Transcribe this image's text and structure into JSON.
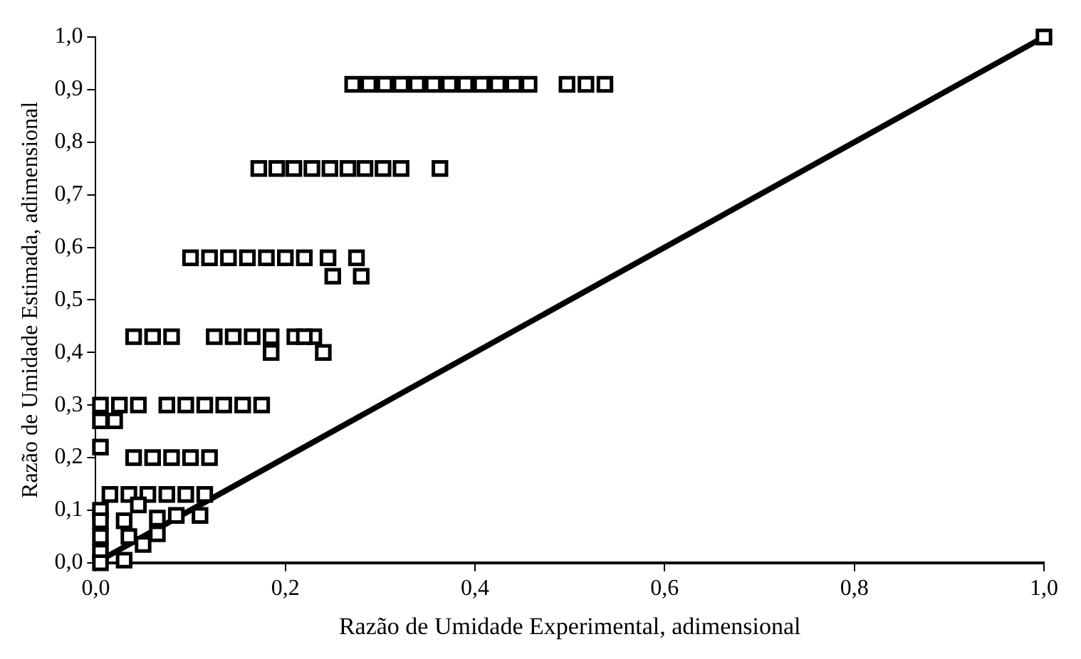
{
  "chart_data": {
    "type": "scatter",
    "xlabel": "Razão de Umidade Experimental, adimensional",
    "ylabel": "Razão de Umidade Estimada, adimensional",
    "xlim": [
      0,
      1
    ],
    "ylim": [
      0,
      1
    ],
    "xticks": [
      {
        "value": 0,
        "label": "0,0"
      },
      {
        "value": 0.2,
        "label": "0,2"
      },
      {
        "value": 0.4,
        "label": "0,4"
      },
      {
        "value": 0.6,
        "label": "0,6"
      },
      {
        "value": 0.8,
        "label": "0,8"
      },
      {
        "value": 1,
        "label": "1,0"
      }
    ],
    "yticks": [
      {
        "value": 0,
        "label": "0,0"
      },
      {
        "value": 0.1,
        "label": "0,1"
      },
      {
        "value": 0.2,
        "label": "0,2"
      },
      {
        "value": 0.3,
        "label": "0,3"
      },
      {
        "value": 0.4,
        "label": "0,4"
      },
      {
        "value": 0.5,
        "label": "0,5"
      },
      {
        "value": 0.6,
        "label": "0,6"
      },
      {
        "value": 0.7,
        "label": "0,7"
      },
      {
        "value": 0.8,
        "label": "0,8"
      },
      {
        "value": 0.9,
        "label": "0,9"
      },
      {
        "value": 1,
        "label": "1,0"
      }
    ],
    "grid": false,
    "legend": false,
    "marker": "square",
    "series": [
      {
        "type": "scatter",
        "color": "#000000",
        "x": [
          0.271,
          0.288,
          0.305,
          0.322,
          0.339,
          0.356,
          0.373,
          0.39,
          0.407,
          0.424,
          0.441,
          0.457,
          0.497,
          0.517,
          0.537,
          0.172,
          0.191,
          0.209,
          0.228,
          0.247,
          0.266,
          0.284,
          0.303,
          0.322,
          0.363,
          0.1,
          0.12,
          0.14,
          0.16,
          0.18,
          0.2,
          0.22,
          0.245,
          0.275,
          0.25,
          0.28,
          0.04,
          0.06,
          0.08,
          0.125,
          0.145,
          0.165,
          0.185,
          0.21,
          0.23,
          0.24,
          0.185,
          0.22,
          0.005,
          0.025,
          0.045,
          0.075,
          0.095,
          0.115,
          0.135,
          0.155,
          0.175,
          0.005,
          0.02,
          0.005,
          0.04,
          0.06,
          0.08,
          0.1,
          0.12,
          0.015,
          0.035,
          0.055,
          0.075,
          0.095,
          0.115,
          0.005,
          0.005,
          0.005,
          0.005,
          0.005,
          0.03,
          0.045,
          0.065,
          0.085,
          0.11,
          0.035,
          0.05,
          0.065,
          0.03,
          1.0
        ],
        "values": [
          0.91,
          0.91,
          0.91,
          0.91,
          0.91,
          0.91,
          0.91,
          0.91,
          0.91,
          0.91,
          0.91,
          0.91,
          0.91,
          0.91,
          0.91,
          0.75,
          0.75,
          0.75,
          0.75,
          0.75,
          0.75,
          0.75,
          0.75,
          0.75,
          0.75,
          0.58,
          0.58,
          0.58,
          0.58,
          0.58,
          0.58,
          0.58,
          0.58,
          0.58,
          0.545,
          0.545,
          0.43,
          0.43,
          0.43,
          0.43,
          0.43,
          0.43,
          0.43,
          0.43,
          0.43,
          0.4,
          0.4,
          0.43,
          0.3,
          0.3,
          0.3,
          0.3,
          0.3,
          0.3,
          0.3,
          0.3,
          0.3,
          0.27,
          0.27,
          0.22,
          0.2,
          0.2,
          0.2,
          0.2,
          0.2,
          0.13,
          0.13,
          0.13,
          0.13,
          0.13,
          0.13,
          0.1,
          0.08,
          0.05,
          0.02,
          0.0,
          0.08,
          0.11,
          0.085,
          0.09,
          0.09,
          0.05,
          0.035,
          0.055,
          0.005,
          1.0
        ]
      },
      {
        "type": "line",
        "color": "#000000",
        "marker": "none",
        "line_style": "solid",
        "x": [
          0,
          1
        ],
        "values": [
          0,
          1
        ]
      }
    ]
  }
}
